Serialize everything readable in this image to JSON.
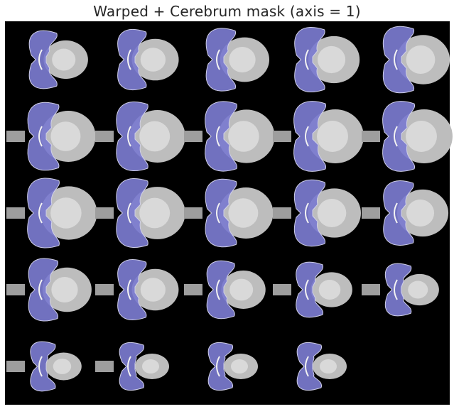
{
  "figure": {
    "title": "Warped + Cerebrum mask (axis = 1)"
  },
  "montage": {
    "rows": 5,
    "cols": 5,
    "slice_count": 24,
    "background_color": "#000000",
    "mask_color": "#7b7bcf",
    "tissue_color": "#bdbdbd"
  }
}
